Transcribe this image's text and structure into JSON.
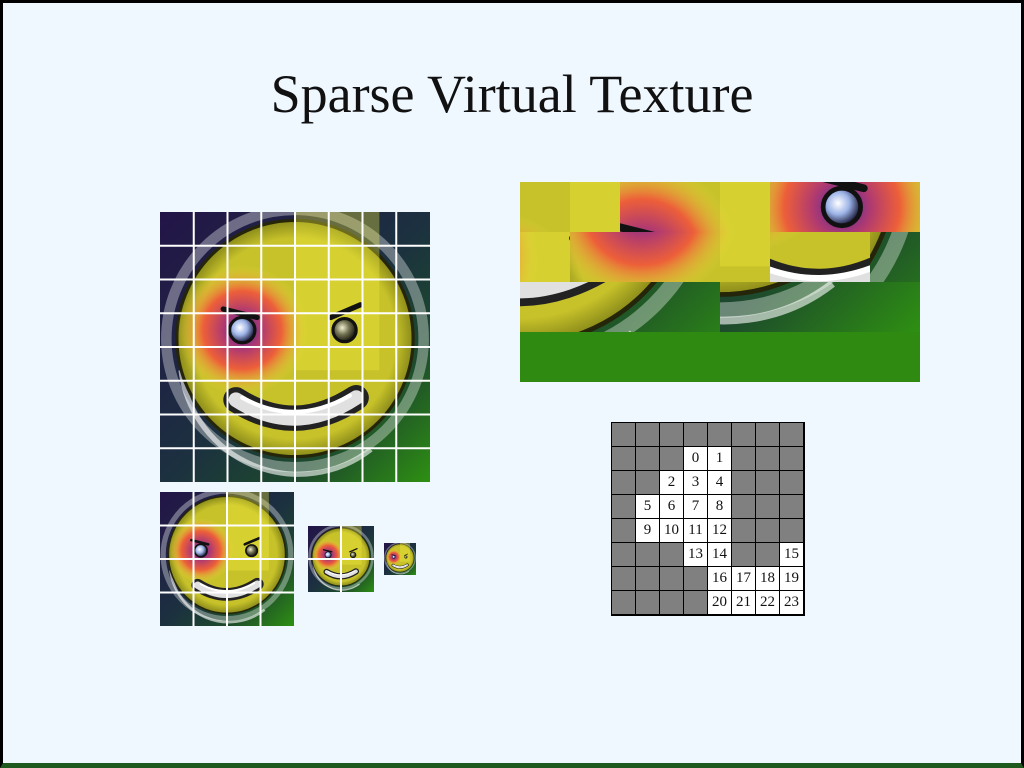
{
  "title": "Sparse Virtual Texture",
  "colors": {
    "background": "#f0f8ff",
    "grid_line": "#ffffff",
    "table_empty": "#808080",
    "table_resident": "#ffffff",
    "atlas_fill": "#2f8a12"
  },
  "mip_levels": [
    {
      "level": 0,
      "tiles_per_side": 8
    },
    {
      "level": 1,
      "tiles_per_side": 4
    },
    {
      "level": 2,
      "tiles_per_side": 2
    },
    {
      "level": 3,
      "tiles_per_side": 1
    }
  ],
  "page_table": {
    "size": 8,
    "rows": [
      [
        null,
        null,
        null,
        null,
        null,
        null,
        null,
        null
      ],
      [
        null,
        null,
        null,
        0,
        1,
        null,
        null,
        null
      ],
      [
        null,
        null,
        2,
        3,
        4,
        null,
        null,
        null
      ],
      [
        null,
        5,
        6,
        7,
        8,
        null,
        null,
        null
      ],
      [
        null,
        9,
        10,
        11,
        12,
        null,
        null,
        null
      ],
      [
        null,
        null,
        null,
        13,
        14,
        null,
        null,
        15
      ],
      [
        null,
        null,
        null,
        null,
        16,
        17,
        18,
        19
      ],
      [
        null,
        null,
        null,
        null,
        20,
        21,
        22,
        23
      ]
    ]
  },
  "atlas": {
    "columns": 8,
    "rows": 4,
    "tile_count": 24
  }
}
